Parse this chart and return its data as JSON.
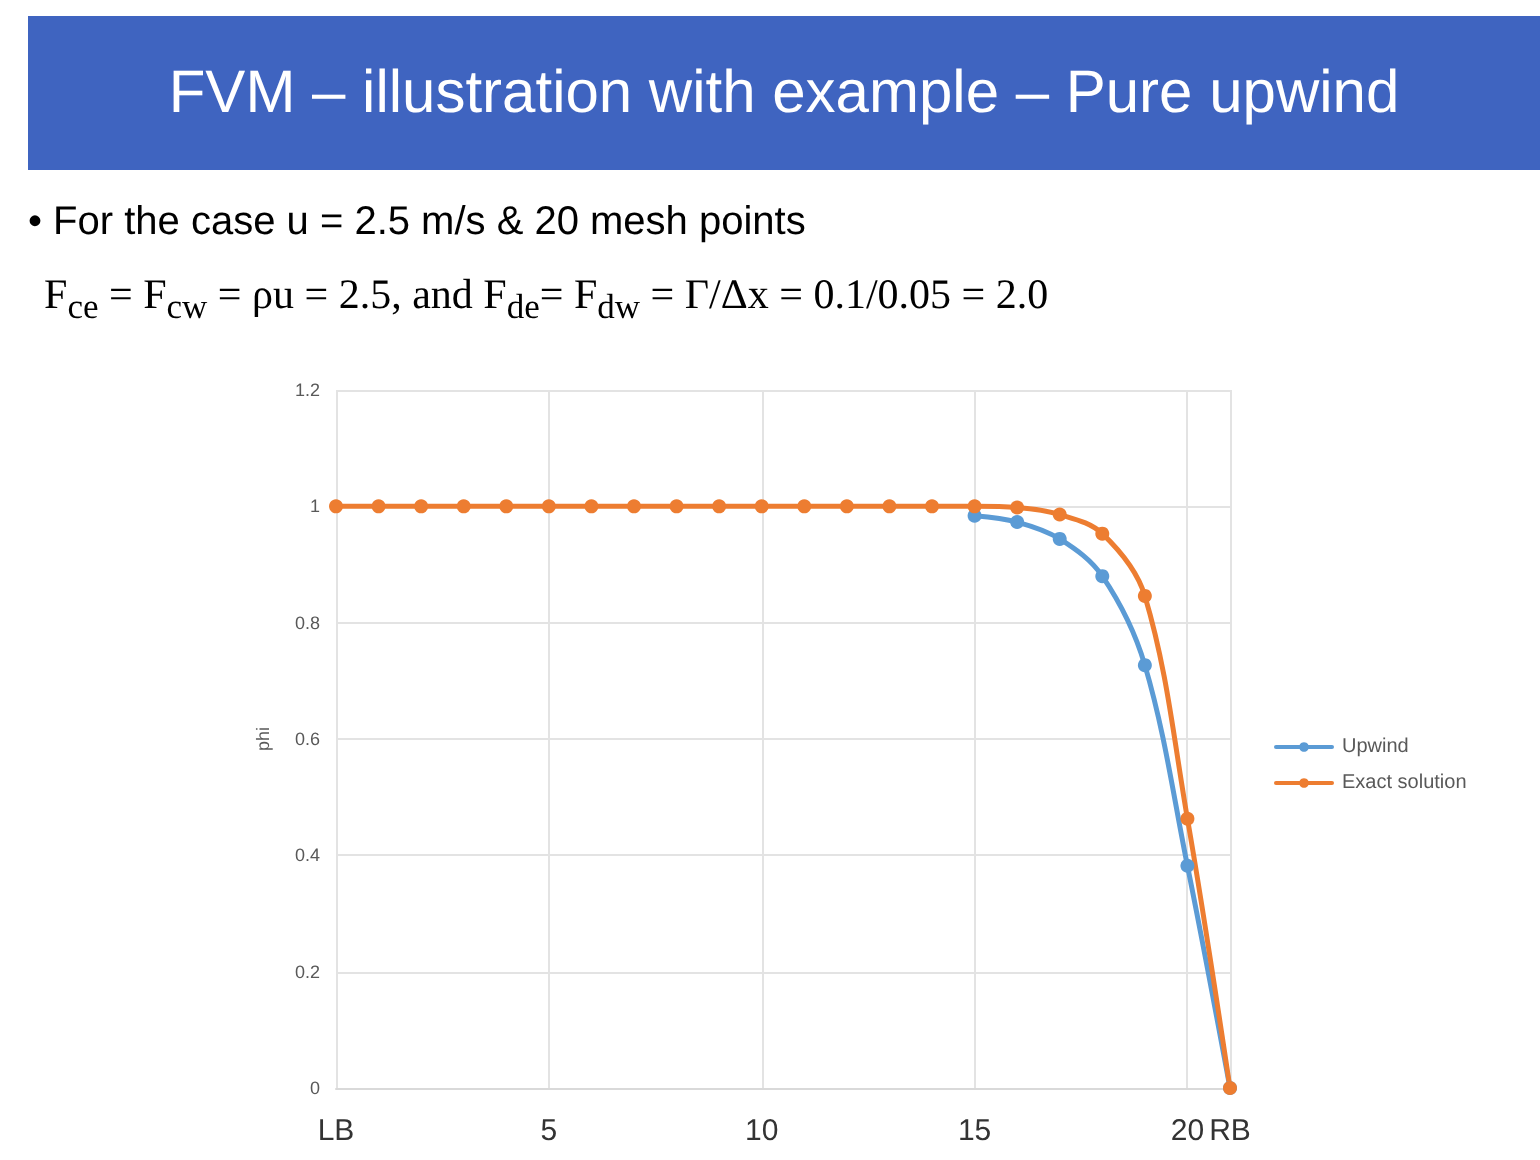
{
  "chart_data": {
    "type": "line",
    "title": "FVM – illustration with example – Pure upwind",
    "annotations": [
      "• For the case u = 2.5 m/s & 20 mesh points",
      "F$_{ce}$ = F$_{cw}$ = ρu = 2.5, and   F$_{de}$= F$_{dw}$ = Γ/Δx = 0.1/0.05 = 2.0"
    ],
    "ylabel": "phi",
    "x": [
      0,
      1,
      2,
      3,
      4,
      5,
      6,
      7,
      8,
      9,
      10,
      11,
      12,
      13,
      14,
      15,
      16,
      17,
      18,
      19,
      20,
      21
    ],
    "series": [
      {
        "name": "Upwind",
        "color": "#5b9bd5",
        "values": [
          null,
          null,
          null,
          null,
          null,
          null,
          null,
          null,
          null,
          null,
          null,
          null,
          null,
          null,
          null,
          0.984,
          0.973,
          0.944,
          0.88,
          0.727,
          0.382,
          0
        ]
      },
      {
        "name": "Exact solution",
        "color": "#ed7d31",
        "values": [
          1,
          1,
          1,
          1,
          1,
          1,
          1,
          1,
          1,
          1,
          1,
          1,
          1,
          1,
          1,
          1,
          0.998,
          0.986,
          0.953,
          0.846,
          0.463,
          0
        ]
      }
    ],
    "xlim": [
      0,
      21
    ],
    "xticks": [
      {
        "value": 0,
        "label": "LB"
      },
      5,
      10,
      15,
      20,
      {
        "value": 21,
        "label": "RB"
      }
    ],
    "ylim": [
      0,
      1.2
    ],
    "yticks": [
      0,
      0.2,
      0.4,
      0.6,
      0.8,
      1,
      1.2
    ],
    "grid": true,
    "legend": "right",
    "marker": "circle",
    "line_style": "solid"
  }
}
